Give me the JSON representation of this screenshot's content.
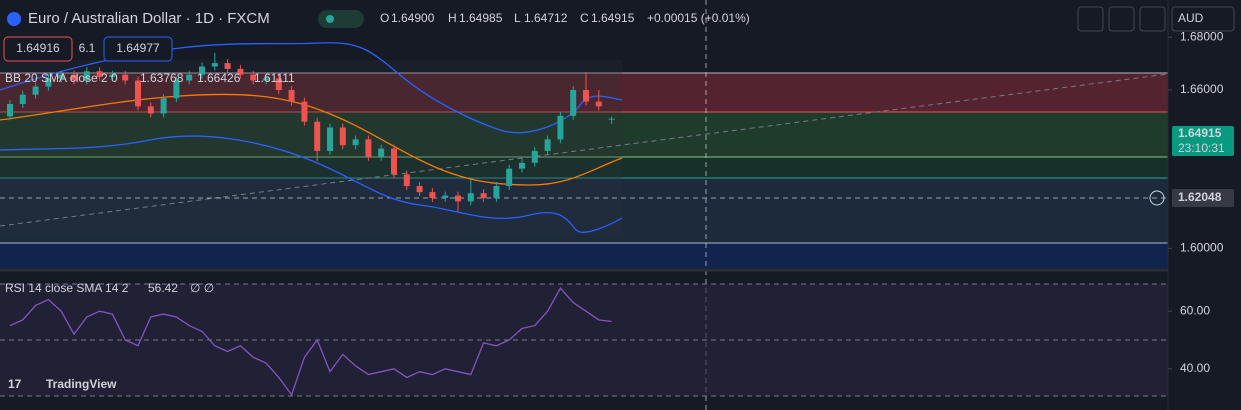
{
  "header": {
    "symbol": "Euro / Australian Dollar · 1D · FXCM",
    "o_label": "O",
    "o": "1.64900",
    "h_label": "H",
    "h": "1.64985",
    "l_label": "L",
    "l": "1.64712",
    "c_label": "C",
    "c": "1.64915",
    "change": "+0.00015 (+0.01%)",
    "sell": "1.64916",
    "spread": "6.1",
    "buy": "1.64977",
    "currency": "AUD"
  },
  "bb_legend": {
    "name": "BB 20 SMA close 2 0",
    "basis": "1.63768",
    "upper": "1.66426",
    "lower": "1.61111"
  },
  "price_chart": {
    "type": "candlestick",
    "ylim": [
      1.5918,
      1.6941
    ],
    "yticks": [
      {
        "value": 1.68,
        "label": "1.68000"
      },
      {
        "value": 1.66,
        "label": "1.66000"
      },
      {
        "value": 1.6,
        "label": "1.60000"
      }
    ],
    "last_price": {
      "value": 1.64915,
      "label": "1.64915"
    },
    "countdown": "23:10:31",
    "crosshair": {
      "value": 1.62048,
      "label": "1.62048"
    },
    "up_color": "#26a69a",
    "down_color": "#ef5350",
    "candles": [
      [
        1.65,
        1.6562,
        1.6485,
        1.6547
      ],
      [
        1.6547,
        1.6597,
        1.6532,
        1.6582
      ],
      [
        1.6582,
        1.6628,
        1.6567,
        1.6613
      ],
      [
        1.6613,
        1.6659,
        1.6598,
        1.6644
      ],
      [
        1.6644,
        1.6673,
        1.6629,
        1.6658
      ],
      [
        1.6658,
        1.6673,
        1.6621,
        1.6636
      ],
      [
        1.6636,
        1.6686,
        1.6621,
        1.6671
      ],
      [
        1.6671,
        1.6686,
        1.6634,
        1.6649
      ],
      [
        1.6649,
        1.6673,
        1.6634,
        1.6658
      ],
      [
        1.6658,
        1.6673,
        1.6621,
        1.6636
      ],
      [
        1.6636,
        1.6651,
        1.6523,
        1.6538
      ],
      [
        1.6538,
        1.6553,
        1.6496,
        1.6511
      ],
      [
        1.6511,
        1.6584,
        1.6496,
        1.6569
      ],
      [
        1.6569,
        1.6651,
        1.6554,
        1.6636
      ],
      [
        1.6636,
        1.6673,
        1.6621,
        1.6658
      ],
      [
        1.6658,
        1.6704,
        1.6643,
        1.6689
      ],
      [
        1.6689,
        1.674,
        1.6674,
        1.6702
      ],
      [
        1.6702,
        1.6717,
        1.6665,
        1.668
      ],
      [
        1.668,
        1.6695,
        1.6643,
        1.6658
      ],
      [
        1.6658,
        1.6673,
        1.6621,
        1.6636
      ],
      [
        1.6636,
        1.6659,
        1.6621,
        1.6644
      ],
      [
        1.6644,
        1.6659,
        1.6585,
        1.66
      ],
      [
        1.66,
        1.6615,
        1.6541,
        1.6556
      ],
      [
        1.6556,
        1.6571,
        1.6465,
        1.648
      ],
      [
        1.648,
        1.6495,
        1.633,
        1.6369
      ],
      [
        1.6369,
        1.6473,
        1.6354,
        1.6458
      ],
      [
        1.6458,
        1.6473,
        1.6376,
        1.6391
      ],
      [
        1.6391,
        1.6428,
        1.6376,
        1.6413
      ],
      [
        1.6413,
        1.6428,
        1.6332,
        1.6347
      ],
      [
        1.6347,
        1.6393,
        1.6332,
        1.6378
      ],
      [
        1.6378,
        1.6393,
        1.6265,
        1.628
      ],
      [
        1.628,
        1.6295,
        1.6221,
        1.6236
      ],
      [
        1.6236,
        1.6251,
        1.6198,
        1.6213
      ],
      [
        1.6213,
        1.6228,
        1.6176,
        1.6191
      ],
      [
        1.6191,
        1.6215,
        1.6176,
        1.62
      ],
      [
        1.62,
        1.6215,
        1.614,
        1.6178
      ],
      [
        1.6178,
        1.626,
        1.6163,
        1.6209
      ],
      [
        1.6209,
        1.6224,
        1.6176,
        1.6191
      ],
      [
        1.6191,
        1.6251,
        1.6176,
        1.6236
      ],
      [
        1.6236,
        1.6317,
        1.6221,
        1.6302
      ],
      [
        1.6302,
        1.6339,
        1.6287,
        1.6324
      ],
      [
        1.6324,
        1.6384,
        1.6309,
        1.6369
      ],
      [
        1.6369,
        1.6428,
        1.6354,
        1.6413
      ],
      [
        1.6413,
        1.6517,
        1.6398,
        1.6502
      ],
      [
        1.6502,
        1.6615,
        1.6487,
        1.66
      ],
      [
        1.66,
        1.6668,
        1.6541,
        1.6556
      ],
      [
        1.6556,
        1.66,
        1.6523,
        1.6538
      ],
      [
        1.649,
        1.64985,
        1.64712,
        1.64915
      ]
    ]
  },
  "rsi": {
    "type": "line",
    "name": "RSI 14 close SMA 14 2",
    "extra": "∅ ∅",
    "color": "#7e57c2",
    "ylim": [
      25.7,
      74.3
    ],
    "yticks": [
      {
        "value": 60,
        "label": "60.00"
      },
      {
        "value": 40,
        "label": "40.00"
      }
    ],
    "values": [
      55,
      57,
      62,
      64,
      60,
      52,
      58,
      60,
      59,
      50,
      48,
      58,
      59,
      58,
      55,
      53,
      48,
      46,
      48,
      44,
      42,
      37,
      31,
      44,
      50,
      39,
      45,
      41,
      38,
      39,
      40,
      37,
      39,
      38,
      40,
      39,
      38,
      49,
      48,
      50,
      54,
      55,
      60,
      68,
      63,
      60,
      57,
      56.42
    ]
  },
  "logo": "TradingView"
}
